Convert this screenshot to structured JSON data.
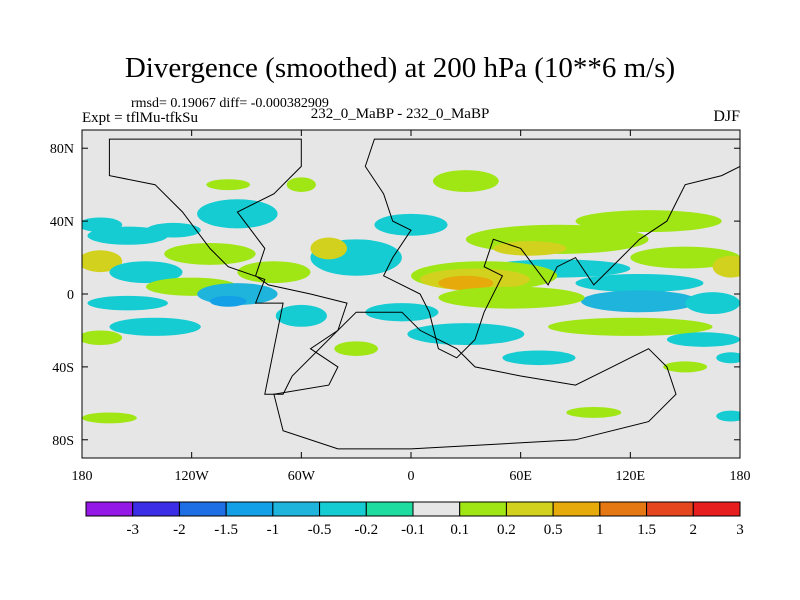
{
  "chart_data": {
    "type": "heatmap",
    "title": "Divergence (smoothed) at 200 hPa (10**6 m/s)",
    "stats_line": "rmsd= 0.19067 diff= -0.000382909",
    "left_label": "Expt = tflMu-tfkSu",
    "center_label": "232_0_MaBP - 232_0_MaBP",
    "right_label": "DJF",
    "xlim": [
      -180,
      180
    ],
    "ylim": [
      -90,
      90
    ],
    "x_ticks": [
      {
        "value": -180,
        "label": "180"
      },
      {
        "value": -120,
        "label": "120W"
      },
      {
        "value": -60,
        "label": "60W"
      },
      {
        "value": 0,
        "label": "0"
      },
      {
        "value": 60,
        "label": "60E"
      },
      {
        "value": 120,
        "label": "120E"
      },
      {
        "value": 180,
        "label": "180"
      }
    ],
    "y_ticks": [
      {
        "value": 80,
        "label": "80N"
      },
      {
        "value": 40,
        "label": "40N"
      },
      {
        "value": 0,
        "label": "0"
      },
      {
        "value": -40,
        "label": "40S"
      },
      {
        "value": -80,
        "label": "80S"
      }
    ],
    "colorbar": {
      "labels": [
        "-3",
        "-2",
        "-1.5",
        "-1",
        "-0.5",
        "-0.2",
        "-0.1",
        "0.1",
        "0.2",
        "0.5",
        "1",
        "1.5",
        "2",
        "3"
      ],
      "colors": [
        "#9419e6",
        "#3c2ee6",
        "#1e6ee6",
        "#14a0e6",
        "#1eb4dc",
        "#14ccd2",
        "#1edca0",
        "#e6e6e6",
        "#a0e614",
        "#d2d21e",
        "#e6aa0a",
        "#e67814",
        "#e6461e",
        "#e61e1e"
      ]
    },
    "patches": [
      {
        "lon": -170,
        "lat": 38,
        "rlon": 12,
        "rlat": 4,
        "level": 5
      },
      {
        "lon": -155,
        "lat": 32,
        "rlon": 22,
        "rlat": 5,
        "level": 5
      },
      {
        "lon": -130,
        "lat": 35,
        "rlon": 15,
        "rlat": 4,
        "level": 5
      },
      {
        "lon": -95,
        "lat": 44,
        "rlon": 22,
        "rlat": 8,
        "level": 5
      },
      {
        "lon": -110,
        "lat": 22,
        "rlon": 25,
        "rlat": 6,
        "level": 8
      },
      {
        "lon": -170,
        "lat": 18,
        "rlon": 12,
        "rlat": 6,
        "level": 9
      },
      {
        "lon": -145,
        "lat": 12,
        "rlon": 20,
        "rlat": 6,
        "level": 5
      },
      {
        "lon": -120,
        "lat": 4,
        "rlon": 25,
        "rlat": 5,
        "level": 8
      },
      {
        "lon": -75,
        "lat": 12,
        "rlon": 20,
        "rlat": 6,
        "level": 8
      },
      {
        "lon": -30,
        "lat": 20,
        "rlon": 25,
        "rlat": 10,
        "level": 5
      },
      {
        "lon": -45,
        "lat": 25,
        "rlon": 10,
        "rlat": 6,
        "level": 9
      },
      {
        "lon": -95,
        "lat": 0,
        "rlon": 22,
        "rlat": 6,
        "level": 4
      },
      {
        "lon": -100,
        "lat": -4,
        "rlon": 10,
        "rlat": 3,
        "level": 3
      },
      {
        "lon": -155,
        "lat": -5,
        "rlon": 22,
        "rlat": 4,
        "level": 5
      },
      {
        "lon": -140,
        "lat": -18,
        "rlon": 25,
        "rlat": 5,
        "level": 5
      },
      {
        "lon": -170,
        "lat": -24,
        "rlon": 12,
        "rlat": 4,
        "level": 8
      },
      {
        "lon": -60,
        "lat": -12,
        "rlon": 14,
        "rlat": 6,
        "level": 5
      },
      {
        "lon": -5,
        "lat": -10,
        "rlon": 20,
        "rlat": 5,
        "level": 5
      },
      {
        "lon": 30,
        "lat": -22,
        "rlon": 32,
        "rlat": 6,
        "level": 5
      },
      {
        "lon": -30,
        "lat": -30,
        "rlon": 12,
        "rlat": 4,
        "level": 8
      },
      {
        "lon": 30,
        "lat": 62,
        "rlon": 18,
        "rlat": 6,
        "level": 8
      },
      {
        "lon": 0,
        "lat": 38,
        "rlon": 20,
        "rlat": 6,
        "level": 5
      },
      {
        "lon": -60,
        "lat": 60,
        "rlon": 8,
        "rlat": 4,
        "level": 8
      },
      {
        "lon": -100,
        "lat": 60,
        "rlon": 12,
        "rlat": 3,
        "level": 8
      },
      {
        "lon": 80,
        "lat": 30,
        "rlon": 50,
        "rlat": 8,
        "level": 8
      },
      {
        "lon": 65,
        "lat": 25,
        "rlon": 20,
        "rlat": 4,
        "level": 9
      },
      {
        "lon": 80,
        "lat": 14,
        "rlon": 40,
        "rlat": 5,
        "level": 5
      },
      {
        "lon": 40,
        "lat": 10,
        "rlon": 40,
        "rlat": 8,
        "level": 8
      },
      {
        "lon": 35,
        "lat": 8,
        "rlon": 30,
        "rlat": 6,
        "level": 9
      },
      {
        "lon": 30,
        "lat": 6,
        "rlon": 15,
        "rlat": 4,
        "level": 10
      },
      {
        "lon": 130,
        "lat": 40,
        "rlon": 40,
        "rlat": 6,
        "level": 8
      },
      {
        "lon": 150,
        "lat": 20,
        "rlon": 30,
        "rlat": 6,
        "level": 8
      },
      {
        "lon": 175,
        "lat": 15,
        "rlon": 10,
        "rlat": 6,
        "level": 9
      },
      {
        "lon": 125,
        "lat": 6,
        "rlon": 35,
        "rlat": 5,
        "level": 5
      },
      {
        "lon": 125,
        "lat": -4,
        "rlon": 32,
        "rlat": 6,
        "level": 4
      },
      {
        "lon": 165,
        "lat": -5,
        "rlon": 15,
        "rlat": 6,
        "level": 5
      },
      {
        "lon": 55,
        "lat": -2,
        "rlon": 40,
        "rlat": 6,
        "level": 8
      },
      {
        "lon": 120,
        "lat": -18,
        "rlon": 45,
        "rlat": 5,
        "level": 8
      },
      {
        "lon": 160,
        "lat": -25,
        "rlon": 20,
        "rlat": 4,
        "level": 5
      },
      {
        "lon": 175,
        "lat": -35,
        "rlon": 8,
        "rlat": 3,
        "level": 5
      },
      {
        "lon": 150,
        "lat": -40,
        "rlon": 12,
        "rlat": 3,
        "level": 8
      },
      {
        "lon": 70,
        "lat": -35,
        "rlon": 20,
        "rlat": 4,
        "level": 5
      },
      {
        "lon": -165,
        "lat": -68,
        "rlon": 15,
        "rlat": 3,
        "level": 8
      },
      {
        "lon": 100,
        "lat": -65,
        "rlon": 15,
        "rlat": 3,
        "level": 8
      },
      {
        "lon": 175,
        "lat": -67,
        "rlon": 8,
        "rlat": 3,
        "level": 5
      }
    ],
    "continents": [
      [
        [
          -165,
          85
        ],
        [
          -60,
          85
        ],
        [
          -60,
          70
        ],
        [
          -75,
          55
        ],
        [
          -95,
          45
        ],
        [
          -80,
          25
        ],
        [
          -85,
          10
        ],
        [
          -78,
          5
        ],
        [
          -55,
          0
        ],
        [
          -35,
          -5
        ],
        [
          -40,
          -20
        ],
        [
          -65,
          -45
        ],
        [
          -70,
          -55
        ],
        [
          -80,
          -55
        ],
        [
          -75,
          -30
        ],
        [
          -70,
          -5
        ],
        [
          -85,
          -5
        ],
        [
          -80,
          8
        ],
        [
          -100,
          15
        ],
        [
          -110,
          25
        ],
        [
          -125,
          45
        ],
        [
          -140,
          60
        ],
        [
          -165,
          65
        ]
      ],
      [
        [
          -25,
          70
        ],
        [
          -15,
          55
        ],
        [
          -10,
          40
        ],
        [
          0,
          35
        ],
        [
          -10,
          20
        ],
        [
          -15,
          10
        ],
        [
          5,
          0
        ],
        [
          10,
          -10
        ],
        [
          15,
          -30
        ],
        [
          25,
          -35
        ],
        [
          35,
          -25
        ],
        [
          40,
          -10
        ],
        [
          50,
          10
        ],
        [
          40,
          15
        ],
        [
          45,
          30
        ],
        [
          60,
          25
        ],
        [
          75,
          5
        ],
        [
          80,
          15
        ],
        [
          90,
          20
        ],
        [
          100,
          5
        ],
        [
          115,
          20
        ],
        [
          125,
          30
        ],
        [
          140,
          40
        ],
        [
          145,
          50
        ],
        [
          150,
          60
        ],
        [
          170,
          65
        ],
        [
          180,
          70
        ],
        [
          180,
          85
        ],
        [
          -20,
          85
        ]
      ],
      [
        [
          -75,
          -55
        ],
        [
          -45,
          -50
        ],
        [
          -40,
          -40
        ],
        [
          -55,
          -30
        ],
        [
          -40,
          -20
        ],
        [
          -30,
          -10
        ],
        [
          -5,
          -10
        ],
        [
          5,
          -20
        ],
        [
          25,
          -30
        ],
        [
          35,
          -40
        ],
        [
          60,
          -45
        ],
        [
          90,
          -50
        ],
        [
          110,
          -40
        ],
        [
          120,
          -35
        ],
        [
          130,
          -30
        ],
        [
          140,
          -40
        ],
        [
          145,
          -55
        ],
        [
          130,
          -70
        ],
        [
          90,
          -80
        ],
        [
          0,
          -85
        ],
        [
          -40,
          -85
        ],
        [
          -70,
          -75
        ]
      ]
    ]
  }
}
